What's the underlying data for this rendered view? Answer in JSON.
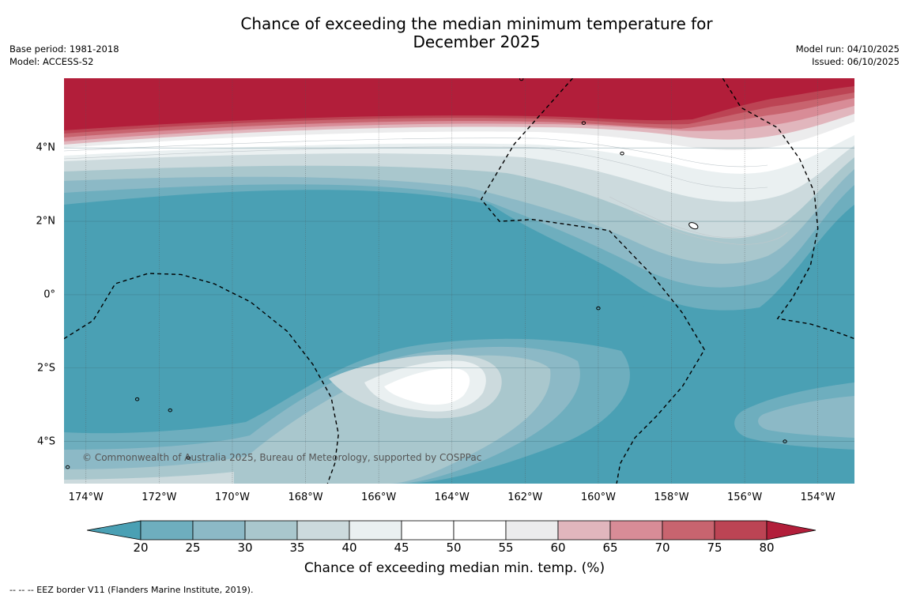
{
  "title": {
    "line1": "Chance of exceeding the median minimum temperature for",
    "line2": "December 2025"
  },
  "meta_left": {
    "base_period": "Base period: 1981-2018",
    "model": "Model: ACCESS-S2"
  },
  "meta_right": {
    "model_run": "Model run: 04/10/2025",
    "issued": "Issued: 06/10/2025"
  },
  "axes": {
    "lat_labels": [
      "4°N",
      "2°N",
      "0°",
      "2°S",
      "4°S"
    ],
    "lon_labels": [
      "174°W",
      "172°W",
      "170°W",
      "168°W",
      "166°W",
      "164°W",
      "162°W",
      "160°W",
      "158°W",
      "156°W",
      "154°W"
    ]
  },
  "map": {
    "lat_values": [
      4,
      2,
      0,
      -2,
      -4
    ],
    "lon_values": [
      -174,
      -172,
      -170,
      -168,
      -166,
      -164,
      -162,
      -160,
      -158,
      -156,
      -154
    ],
    "extent": {
      "lon_min": -174.6,
      "lon_max": -153.0,
      "lat_min": -5.15,
      "lat_max": 5.9
    },
    "copyright": "© Commonwealth of Australia 2025, Bureau of Meteorology, supported by COSPPac",
    "eez_lines": [
      {
        "name": "eez-west",
        "points": [
          [
            -174.6,
            -1.2
          ],
          [
            -173.8,
            -0.7
          ],
          [
            -173.2,
            0.3
          ],
          [
            -172.3,
            0.58
          ],
          [
            -171.4,
            0.55
          ],
          [
            -170.5,
            0.3
          ],
          [
            -169.5,
            -0.2
          ],
          [
            -168.5,
            -1.0
          ],
          [
            -167.8,
            -1.9
          ],
          [
            -167.3,
            -2.8
          ],
          [
            -167.1,
            -3.8
          ],
          [
            -167.2,
            -4.6
          ],
          [
            -167.4,
            -5.15
          ]
        ]
      },
      {
        "name": "eez-central",
        "points": [
          [
            -160.7,
            5.9
          ],
          [
            -162.3,
            4.1
          ],
          [
            -163.2,
            2.6
          ],
          [
            -162.7,
            2.0
          ],
          [
            -161.8,
            2.05
          ],
          [
            -159.7,
            1.75
          ],
          [
            -158.5,
            0.5
          ],
          [
            -157.7,
            -0.5
          ],
          [
            -157.1,
            -1.5
          ],
          [
            -157.7,
            -2.5
          ],
          [
            -158.4,
            -3.3
          ],
          [
            -159.0,
            -3.9
          ],
          [
            -159.4,
            -4.6
          ],
          [
            -159.5,
            -5.15
          ]
        ]
      },
      {
        "name": "eez-east",
        "points": [
          [
            -156.6,
            5.9
          ],
          [
            -156.1,
            5.1
          ],
          [
            -155.1,
            4.55
          ],
          [
            -154.5,
            3.7
          ],
          [
            -154.1,
            2.8
          ],
          [
            -154.0,
            1.8
          ],
          [
            -154.2,
            0.8
          ],
          [
            -154.7,
            -0.1
          ],
          [
            -155.1,
            -0.65
          ],
          [
            -154.2,
            -0.8
          ],
          [
            -153.4,
            -1.05
          ],
          [
            -153.0,
            -1.2
          ]
        ]
      }
    ],
    "islands": [
      {
        "name": "kiritimati",
        "lon": -157.4,
        "lat": 1.88
      },
      {
        "name": "jarvis",
        "lon": -160.0,
        "lat": -0.37
      },
      {
        "name": "tabuaeran",
        "lon": -159.35,
        "lat": 3.85
      },
      {
        "name": "teraina",
        "lon": -160.4,
        "lat": 4.68
      },
      {
        "name": "palmyra",
        "lon": -162.1,
        "lat": 5.88
      },
      {
        "name": "howland",
        "lon": -172.6,
        "lat": -2.85
      },
      {
        "name": "baker",
        "lon": -171.7,
        "lat": -3.15
      },
      {
        "name": "phoenix",
        "lon": -171.2,
        "lat": -4.45
      },
      {
        "name": "canton",
        "lon": -174.5,
        "lat": -4.7
      },
      {
        "name": "malden",
        "lon": -154.9,
        "lat": -4.0
      }
    ]
  },
  "colorbar": {
    "labels": [
      "20",
      "25",
      "30",
      "35",
      "40",
      "45",
      "50",
      "55",
      "60",
      "65",
      "70",
      "75",
      "80"
    ],
    "colors": [
      "#4aa0b4",
      "#6eaebe",
      "#8cb9c6",
      "#a9c7cd",
      "#ccdadd",
      "#eaf0f1",
      "#ffffff",
      "#ffffff",
      "#ececed",
      "#e1b6bd",
      "#d88c97",
      "#c8646f",
      "#bc4454",
      "#b21e3a"
    ],
    "title": "Chance of exceeding median min. temp. (%)"
  },
  "footnote": "--  --  -- EEZ border V11 (Flanders Marine Institute, 2019)."
}
